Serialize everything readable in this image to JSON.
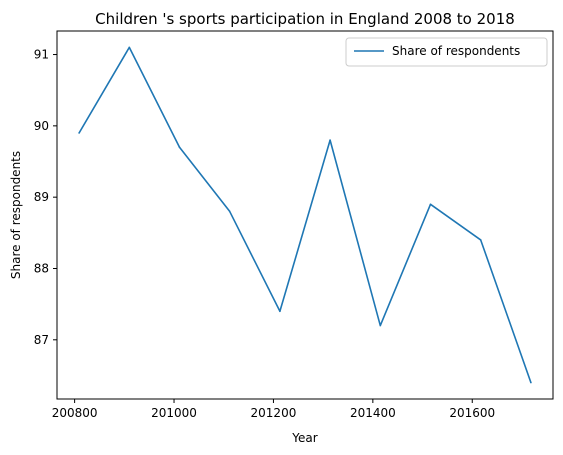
{
  "chart_data": {
    "type": "line",
    "title": "Children 's sports participation in England 2008 to 2018",
    "xlabel": "Year",
    "ylabel": "Share of respondents",
    "x": [
      200809,
      200910,
      201011,
      201112,
      201213,
      201314,
      201415,
      201516,
      201617,
      201718
    ],
    "series": [
      {
        "name": "Share of respondents",
        "color": "#1f77b4",
        "values": [
          89.9,
          91.1,
          89.7,
          88.8,
          87.4,
          89.8,
          87.2,
          88.9,
          88.4,
          86.4
        ]
      }
    ],
    "xlim": [
      200764.55,
      201762.45
    ],
    "ylim": [
      86.17,
      91.33
    ],
    "xticks": [
      200800,
      201000,
      201200,
      201400,
      201600
    ],
    "yticks": [
      87,
      88,
      89,
      90,
      91
    ],
    "legend_position": "top-right",
    "grid": false
  }
}
